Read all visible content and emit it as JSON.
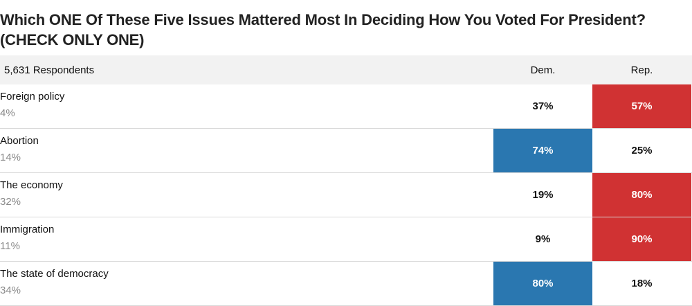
{
  "title": "Which ONE Of These Five Issues Mattered Most In Deciding How You Voted For President? (CHECK ONLY ONE)",
  "colors": {
    "dem": "#2a77b0",
    "rep": "#d03233",
    "header_bg": "#f2f2f2",
    "muted_text": "#8a8a8a"
  },
  "chart_data": {
    "type": "table",
    "title": "Which ONE Of These Five Issues Mattered Most In Deciding How You Voted For President? (CHECK ONLY ONE)",
    "respondents_label": "5,631 Respondents",
    "columns": [
      "Dem.",
      "Rep."
    ],
    "rows": [
      {
        "issue": "Foreign policy",
        "share": "4%",
        "dem": "37%",
        "rep": "57%",
        "winner": "rep"
      },
      {
        "issue": "Abortion",
        "share": "14%",
        "dem": "74%",
        "rep": "25%",
        "winner": "dem"
      },
      {
        "issue": "The economy",
        "share": "32%",
        "dem": "19%",
        "rep": "80%",
        "winner": "rep"
      },
      {
        "issue": "Immigration",
        "share": "11%",
        "dem": "9%",
        "rep": "90%",
        "winner": "rep"
      },
      {
        "issue": "The state of democracy",
        "share": "34%",
        "dem": "80%",
        "rep": "18%",
        "winner": "dem"
      }
    ]
  }
}
